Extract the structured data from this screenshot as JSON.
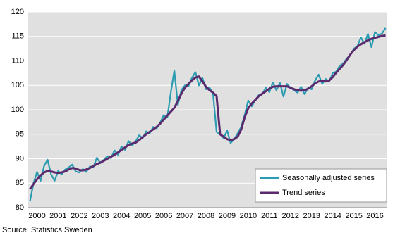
{
  "chart_data": {
    "type": "line",
    "source": "Source: Statistics Sweden",
    "categories": [
      null,
      null,
      "2000",
      null,
      null,
      null,
      null,
      null,
      "2001",
      null,
      null,
      null,
      null,
      null,
      "2002",
      null,
      null,
      null,
      null,
      null,
      "2003",
      null,
      null,
      null,
      null,
      null,
      "2004",
      null,
      null,
      null,
      null,
      null,
      "2005",
      null,
      null,
      null,
      null,
      null,
      "2006",
      null,
      null,
      null,
      null,
      null,
      "2007",
      null,
      null,
      null,
      null,
      null,
      "2008",
      null,
      null,
      null,
      null,
      null,
      "2009",
      null,
      null,
      null,
      null,
      null,
      "2010",
      null,
      null,
      null,
      null,
      null,
      "2011",
      null,
      null,
      null,
      null,
      null,
      "2012",
      null,
      null,
      null,
      null,
      null,
      "2013",
      null,
      null,
      null,
      null,
      null,
      "2014",
      null,
      null,
      null,
      null,
      null,
      "2015",
      null,
      null,
      null,
      null,
      null,
      "2016",
      null,
      null,
      null
    ],
    "series": [
      {
        "name": "Seasonally adjusted series",
        "color": "#2a9bb0",
        "width": 2.2,
        "values": [
          81.3,
          85.0,
          87.3,
          85.5,
          88.5,
          89.8,
          86.8,
          85.5,
          87.5,
          86.8,
          87.8,
          88.2,
          88.8,
          87.4,
          87.2,
          87.9,
          87.3,
          88.4,
          88.3,
          90.2,
          89.1,
          89.8,
          90.5,
          90.1,
          91.7,
          90.8,
          92.5,
          91.8,
          93.6,
          92.7,
          93.5,
          94.8,
          94.2,
          95.6,
          95.2,
          96.5,
          96.2,
          97.4,
          98.9,
          98.4,
          103.5,
          108.0,
          101.0,
          104.0,
          105.0,
          104.8,
          106.5,
          107.7,
          105.0,
          106.5,
          104.2,
          104.5,
          103.3,
          95.5,
          95.0,
          94.2,
          95.8,
          93.2,
          94.0,
          95.2,
          96.5,
          99.0,
          101.9,
          100.7,
          102.0,
          103.0,
          103.2,
          104.5,
          103.6,
          105.6,
          104.0,
          105.5,
          102.7,
          105.3,
          104.5,
          104.0,
          103.5,
          104.7,
          103.2,
          104.5,
          104.2,
          106.0,
          107.2,
          105.3,
          106.3,
          105.8,
          107.5,
          107.8,
          109.0,
          109.5,
          110.5,
          111.2,
          112.5,
          113.0,
          114.8,
          113.5,
          115.5,
          112.8,
          115.9,
          115.2,
          115.6,
          116.7
        ]
      },
      {
        "name": "Trend series",
        "color": "#5b2a6e",
        "width": 3,
        "values": [
          83.8,
          84.8,
          85.8,
          86.6,
          87.2,
          87.5,
          87.4,
          87.2,
          87.1,
          87.2,
          87.4,
          87.8,
          88.1,
          88.0,
          87.7,
          87.6,
          87.8,
          88.1,
          88.5,
          88.9,
          89.2,
          89.6,
          90.0,
          90.4,
          90.8,
          91.3,
          91.8,
          92.3,
          92.8,
          93.1,
          93.3,
          93.8,
          94.4,
          95.0,
          95.5,
          96.0,
          96.5,
          97.2,
          98.0,
          98.8,
          99.6,
          100.4,
          101.8,
          103.3,
          104.5,
          105.3,
          106.0,
          106.6,
          106.8,
          105.8,
          104.7,
          104.0,
          103.5,
          102.8,
          95.0,
          94.5,
          94.0,
          93.8,
          94.0,
          94.5,
          96.0,
          98.5,
          100.3,
          101.3,
          102.0,
          102.8,
          103.3,
          103.8,
          104.3,
          104.7,
          104.8,
          104.8,
          104.8,
          104.8,
          104.5,
          104.2,
          104.0,
          103.9,
          104.0,
          104.3,
          104.8,
          105.4,
          105.8,
          105.9,
          105.8,
          106.0,
          106.7,
          107.6,
          108.4,
          109.2,
          110.2,
          111.3,
          112.2,
          112.9,
          113.4,
          113.8,
          114.2,
          114.5,
          114.7,
          114.9,
          115.1,
          115.2
        ]
      }
    ],
    "ylim": [
      80,
      120
    ],
    "yticks": [
      80,
      85,
      90,
      95,
      100,
      105,
      110,
      115,
      120
    ],
    "grid": true,
    "legend": "lower right",
    "background": "#e0e0e0"
  }
}
